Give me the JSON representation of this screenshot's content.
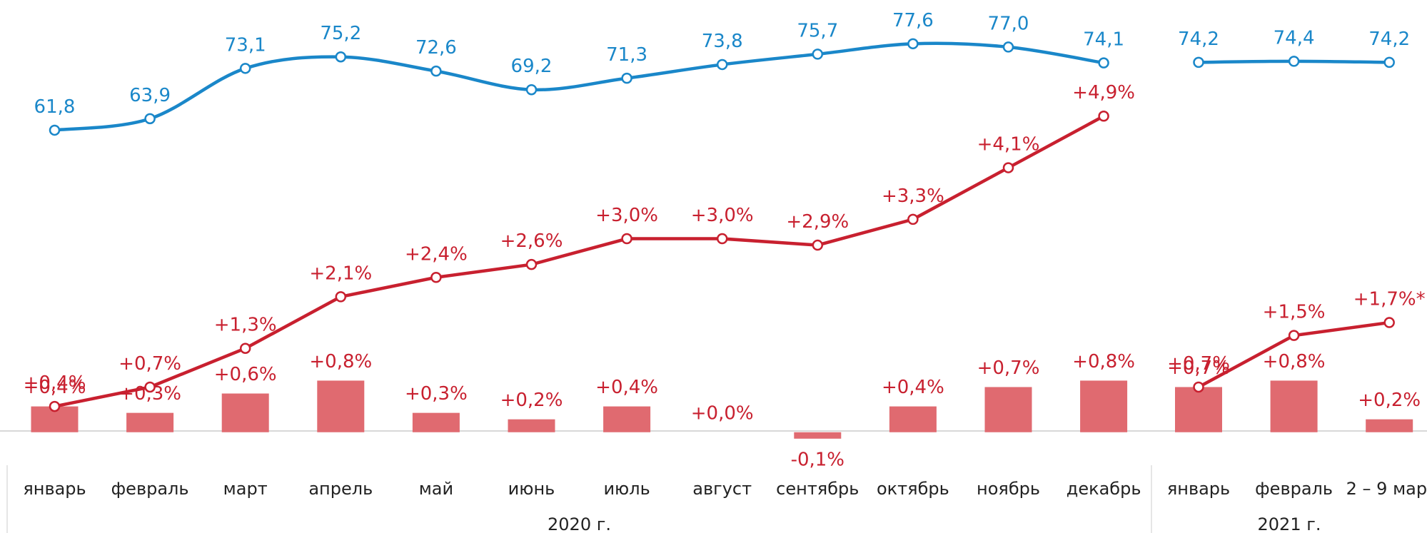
{
  "chart_data": [
    {
      "type": "bar-line",
      "group_label": "2020 г.",
      "categories": [
        "январь",
        "февраль",
        "март",
        "апрель",
        "май",
        "июнь",
        "июль",
        "август",
        "сентябрь",
        "октябрь",
        "ноябрь",
        "декабрь"
      ],
      "ylim": [
        -0.6,
        6.7
      ],
      "y2lim": [
        -0.5,
        85.6
      ],
      "series": [
        {
          "type": "bar",
          "color": "#e06a70",
          "values": [
            0.4,
            0.3,
            0.6,
            0.8,
            0.3,
            0.2,
            0.4,
            0.0,
            -0.1,
            0.4,
            0.7,
            0.8
          ],
          "value_labels": [
            "+0,4%",
            "+0,3%",
            "+0,6%",
            "+0,8%",
            "+0,3%",
            "+0,2%",
            "+0,4%",
            "+0,0%",
            "-0,1%",
            "+0,4%",
            "+0,7%",
            "+0,8%"
          ]
        },
        {
          "type": "line",
          "color": "#c8202f",
          "values": [
            0.4,
            0.7,
            1.3,
            2.1,
            2.4,
            2.6,
            3.0,
            3.0,
            2.9,
            3.3,
            4.1,
            4.9
          ],
          "value_labels": [
            "+0,4%",
            "+0,7%",
            "+1,3%",
            "+2,1%",
            "+2,4%",
            "+2,6%",
            "+3,0%",
            "+3,0%",
            "+2,9%",
            "+3,3%",
            "+4,1%",
            "+4,9%"
          ]
        },
        {
          "type": "line",
          "axis": "y2",
          "smooth": true,
          "color": "#1a87c9",
          "values": [
            61.8,
            63.9,
            73.1,
            75.2,
            72.6,
            69.2,
            71.3,
            73.8,
            75.7,
            77.6,
            77.0,
            74.1
          ],
          "value_labels": [
            "61,8",
            "63,9",
            "73,1",
            "75,2",
            "72,6",
            "69,2",
            "71,3",
            "73,8",
            "75,7",
            "77,6",
            "77,0",
            "74,1"
          ]
        }
      ]
    },
    {
      "type": "bar-line",
      "group_label": "2021 г.",
      "categories": [
        "январь",
        "февраль",
        "2 – 9 мар."
      ],
      "ylim": [
        -0.6,
        6.7
      ],
      "y2lim": [
        -0.5,
        85.6
      ],
      "series": [
        {
          "type": "bar",
          "color": "#e06a70",
          "values": [
            0.7,
            0.8,
            0.2
          ],
          "value_labels": [
            "+0,7%",
            "+0,8%",
            "+0,2%"
          ]
        },
        {
          "type": "line",
          "color": "#c8202f",
          "values": [
            0.7,
            1.5,
            1.7
          ],
          "value_labels": [
            "+0,7%",
            "+1,5%",
            "+1,7%*"
          ]
        },
        {
          "type": "line",
          "axis": "y2",
          "smooth": true,
          "color": "#1a87c9",
          "values": [
            74.2,
            74.4,
            74.2
          ],
          "value_labels": [
            "74,2",
            "74,4",
            "74,2"
          ]
        }
      ]
    }
  ]
}
